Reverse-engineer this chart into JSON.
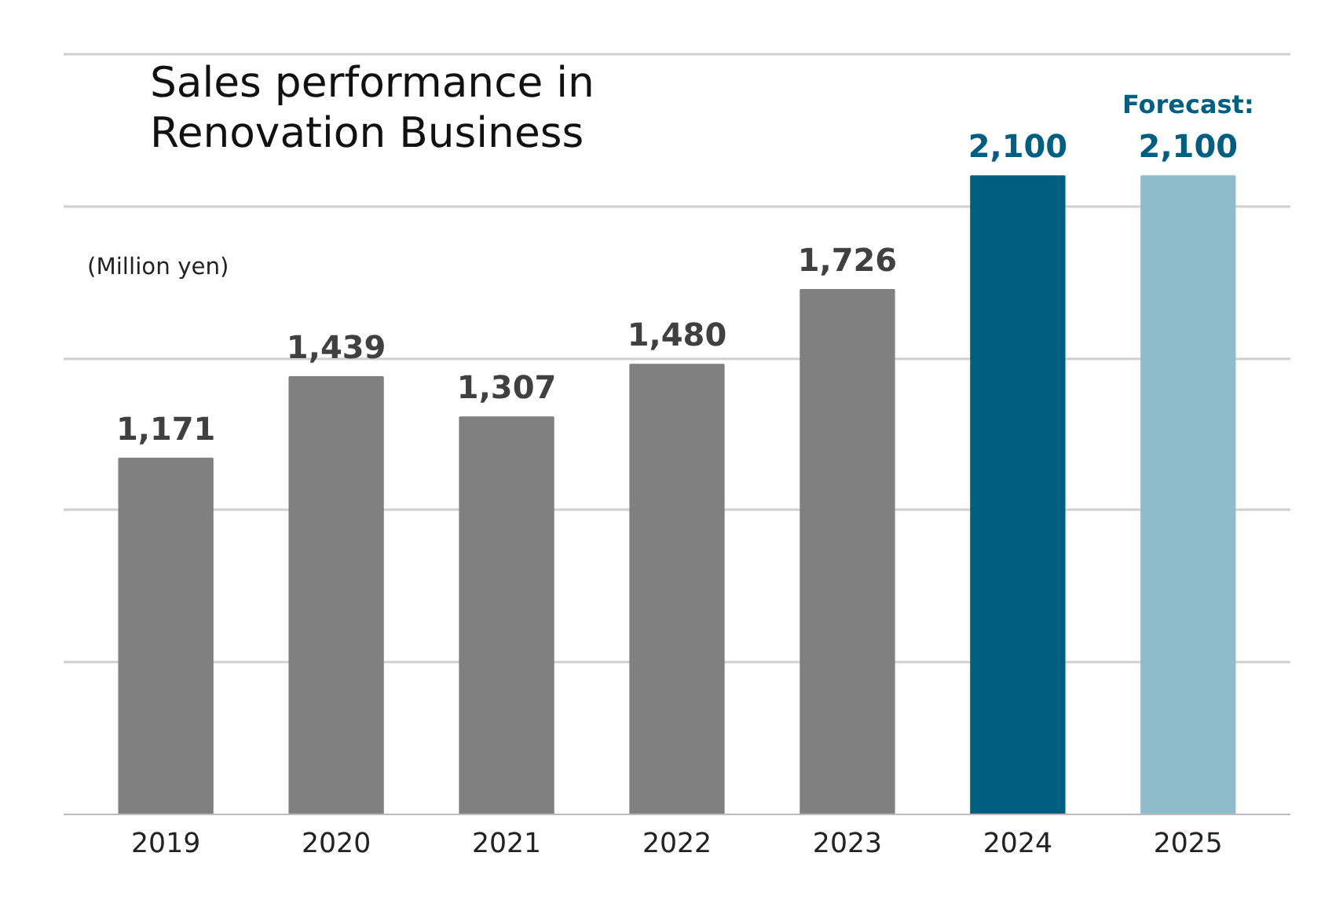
{
  "chart_data": {
    "type": "bar",
    "title": "Sales performance in\nRenovation Business",
    "ylabel": "(Million yen)",
    "categories": [
      "2019",
      "2020",
      "2021",
      "2022",
      "2023",
      "2024",
      "2025"
    ],
    "values": [
      1171,
      1439,
      1307,
      1480,
      1726,
      2100,
      2100
    ],
    "colors": [
      "#808080",
      "#808080",
      "#808080",
      "#808080",
      "#808080",
      "#005f80",
      "#8fbccb"
    ],
    "value_labels": [
      "1,171",
      "1,439",
      "1,307",
      "1,480",
      "1,726",
      "2,100",
      "Forecast:\n2,100"
    ],
    "grid": "y",
    "tick_labels": "x"
  }
}
